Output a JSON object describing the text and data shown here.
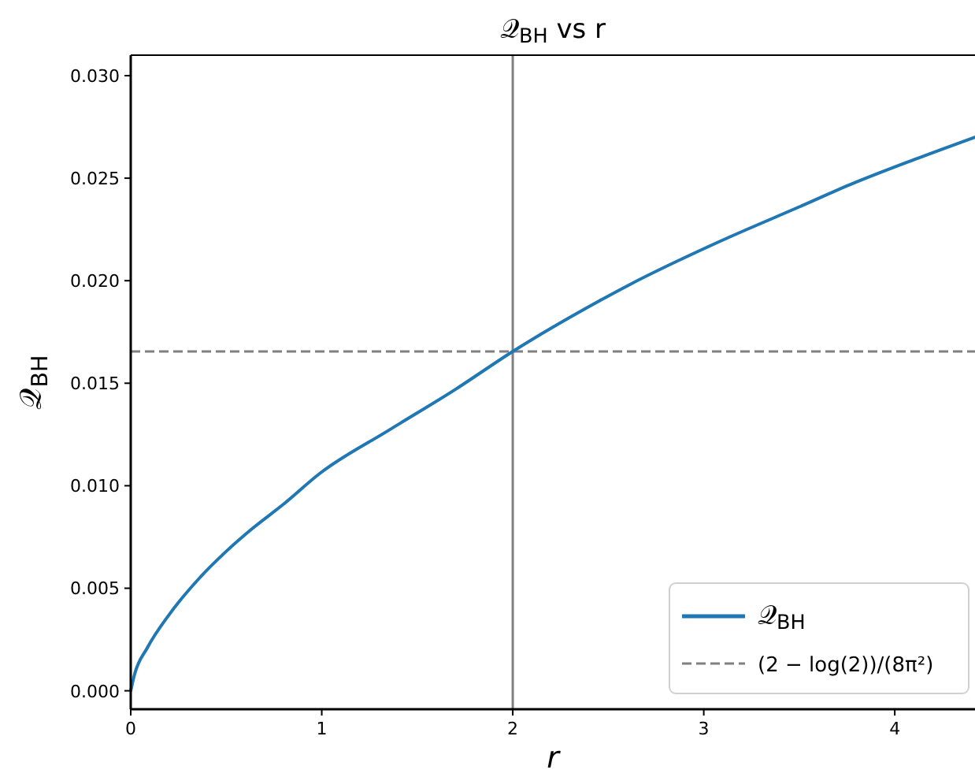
{
  "chart_data": {
    "type": "line",
    "title": "𝒬$_{BH}$ vs r",
    "xlabel": "r",
    "ylabel": "𝒬$_{BH}$",
    "x": [
      0,
      0.02,
      0.087,
      0.2,
      0.36,
      0.5,
      0.635,
      0.8,
      0.99,
      1.35,
      1.7,
      2.0,
      2.45,
      2.61,
      3.08,
      3.5,
      3.77,
      4.1,
      4.42
    ],
    "series": [
      {
        "name": "𝒬$_{BH}$",
        "color": "#1f77b4",
        "values": [
          0,
          0.0008,
          0.0021,
          0.0037,
          0.0055,
          0.0068,
          0.0079,
          0.0091,
          0.0106,
          0.0127,
          0.0147,
          0.01655,
          0.019,
          0.0198,
          0.0219,
          0.0236,
          0.0247,
          0.0259,
          0.027
        ]
      }
    ],
    "xlim": [
      0,
      4.42
    ],
    "ylim": [
      -0.0009,
      0.031
    ],
    "xticks": [
      0,
      1,
      2,
      3,
      4
    ],
    "yticks": [
      {
        "value": 0,
        "label": "0.000"
      },
      {
        "value": 0.005,
        "label": "0.005"
      },
      {
        "value": 0.01,
        "label": "0.010"
      },
      {
        "value": 0.015,
        "label": "0.015"
      },
      {
        "value": 0.02,
        "label": "0.020"
      },
      {
        "value": 0.025,
        "label": "0.025"
      },
      {
        "value": 0.03,
        "label": "0.030"
      }
    ],
    "ref_lines": [
      {
        "axis": "x",
        "value": 2,
        "color": "#808080",
        "line_style": "solid"
      },
      {
        "axis": "y",
        "value": 0.01655,
        "label": "(2 − log(2))/(8π²)",
        "color": "#808080",
        "line_style": "dashed"
      }
    ],
    "legend": "bottom right",
    "grid": false,
    "line_style": "solid",
    "marker": "none"
  }
}
